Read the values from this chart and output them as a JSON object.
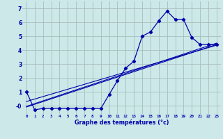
{
  "title": "",
  "xlabel": "Graphe des températures (°c)",
  "background_color": "#cce8e8",
  "grid_color": "#aabcbc",
  "line_color": "#0000aa",
  "xlim": [
    -0.5,
    23.5
  ],
  "ylim": [
    -0.6,
    7.5
  ],
  "yticks": [
    0,
    1,
    2,
    3,
    4,
    5,
    6,
    7
  ],
  "ytick_labels": [
    "-0",
    "1",
    "2",
    "3",
    "4",
    "5",
    "6",
    "7"
  ],
  "xticks": [
    0,
    1,
    2,
    3,
    4,
    5,
    6,
    7,
    8,
    9,
    10,
    11,
    12,
    13,
    14,
    15,
    16,
    17,
    18,
    19,
    20,
    21,
    22,
    23
  ],
  "hours": [
    0,
    1,
    2,
    3,
    4,
    5,
    6,
    7,
    8,
    9,
    10,
    11,
    12,
    13,
    14,
    15,
    16,
    17,
    18,
    19,
    20,
    21,
    22,
    23
  ],
  "temp_main": [
    1.0,
    -0.3,
    -0.2,
    -0.2,
    -0.2,
    -0.2,
    -0.2,
    -0.2,
    -0.2,
    -0.2,
    0.8,
    1.8,
    2.7,
    3.2,
    5.0,
    5.3,
    6.1,
    6.8,
    6.2,
    6.2,
    4.9,
    4.4,
    4.4,
    4.4
  ],
  "temp_line1_x": [
    0,
    23
  ],
  "temp_line1_y": [
    -0.1,
    4.4
  ],
  "temp_line2_x": [
    0,
    23
  ],
  "temp_line2_y": [
    -0.05,
    4.5
  ],
  "temp_line3_x": [
    0,
    23
  ],
  "temp_line3_y": [
    0.3,
    4.35
  ]
}
